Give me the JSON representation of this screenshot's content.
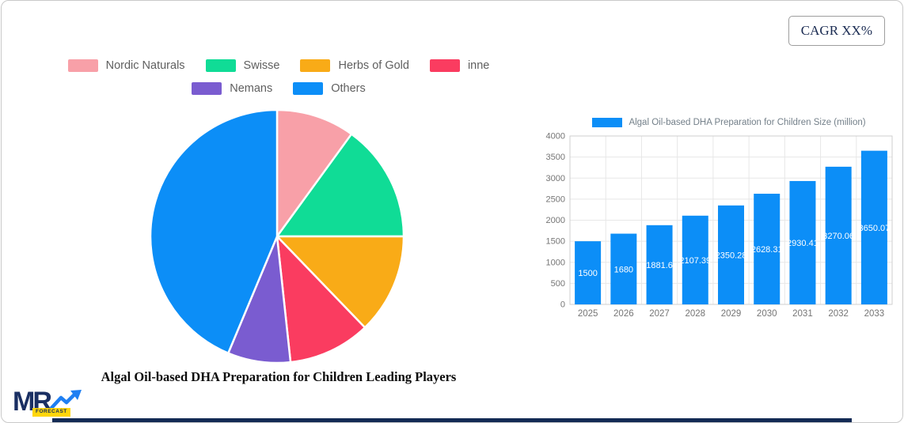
{
  "header": {
    "cagr_label": "CAGR XX%"
  },
  "logo": {
    "mr_text": "MR",
    "forecast_text": "FORECAST",
    "navy": "#1a2f63",
    "blue": "#1f7ff2",
    "yellow": "#ffd60a"
  },
  "footer": {
    "bar_color": "#132a54"
  },
  "chart_data": [
    {
      "type": "pie",
      "title": "Algal Oil-based DHA Preparation for Children Leading Players",
      "legend_position": "top",
      "labels": [
        "Nordic Naturals",
        "Swisse",
        "Herbs of Gold",
        "inne",
        "Nemans",
        "Others"
      ],
      "values": [
        10,
        15,
        12.8,
        10.5,
        8,
        43.7
      ],
      "unit": "% (estimated from slice angles)",
      "colors": [
        "#F8A0A8",
        "#10DC96",
        "#F9AB17",
        "#FA3C60",
        "#7A5CD0",
        "#0C8EF7"
      ],
      "start_angle_deg": 0,
      "direction": "clockwise",
      "legend_rows": [
        4,
        2
      ]
    },
    {
      "type": "bar",
      "legend": "Algal Oil-based DHA Preparation for Children Size (million)",
      "categories": [
        "2025",
        "2026",
        "2027",
        "2028",
        "2029",
        "2030",
        "2031",
        "2032",
        "2033"
      ],
      "values": [
        1500,
        1680,
        1881.6,
        2107.39,
        2350.28,
        2628.31,
        2930.41,
        3270.06,
        3650.07
      ],
      "bar_labels": [
        "1500",
        "1680",
        "1881.6",
        "2107.39",
        "2350.28",
        "2628.31",
        "2930.41",
        "3270.06",
        "3650.07"
      ],
      "ylim": [
        0,
        4000
      ],
      "ytick_step": 500,
      "grid": true,
      "legend_position": "top",
      "bar_color": "#0C8EF7",
      "value_label_color": "#ffffff",
      "axis_text_color": "#757575",
      "legend_text_color": "#74808a",
      "gridline_color": "#e7e7e7",
      "plot_border_color": "#cfcfcf"
    }
  ]
}
